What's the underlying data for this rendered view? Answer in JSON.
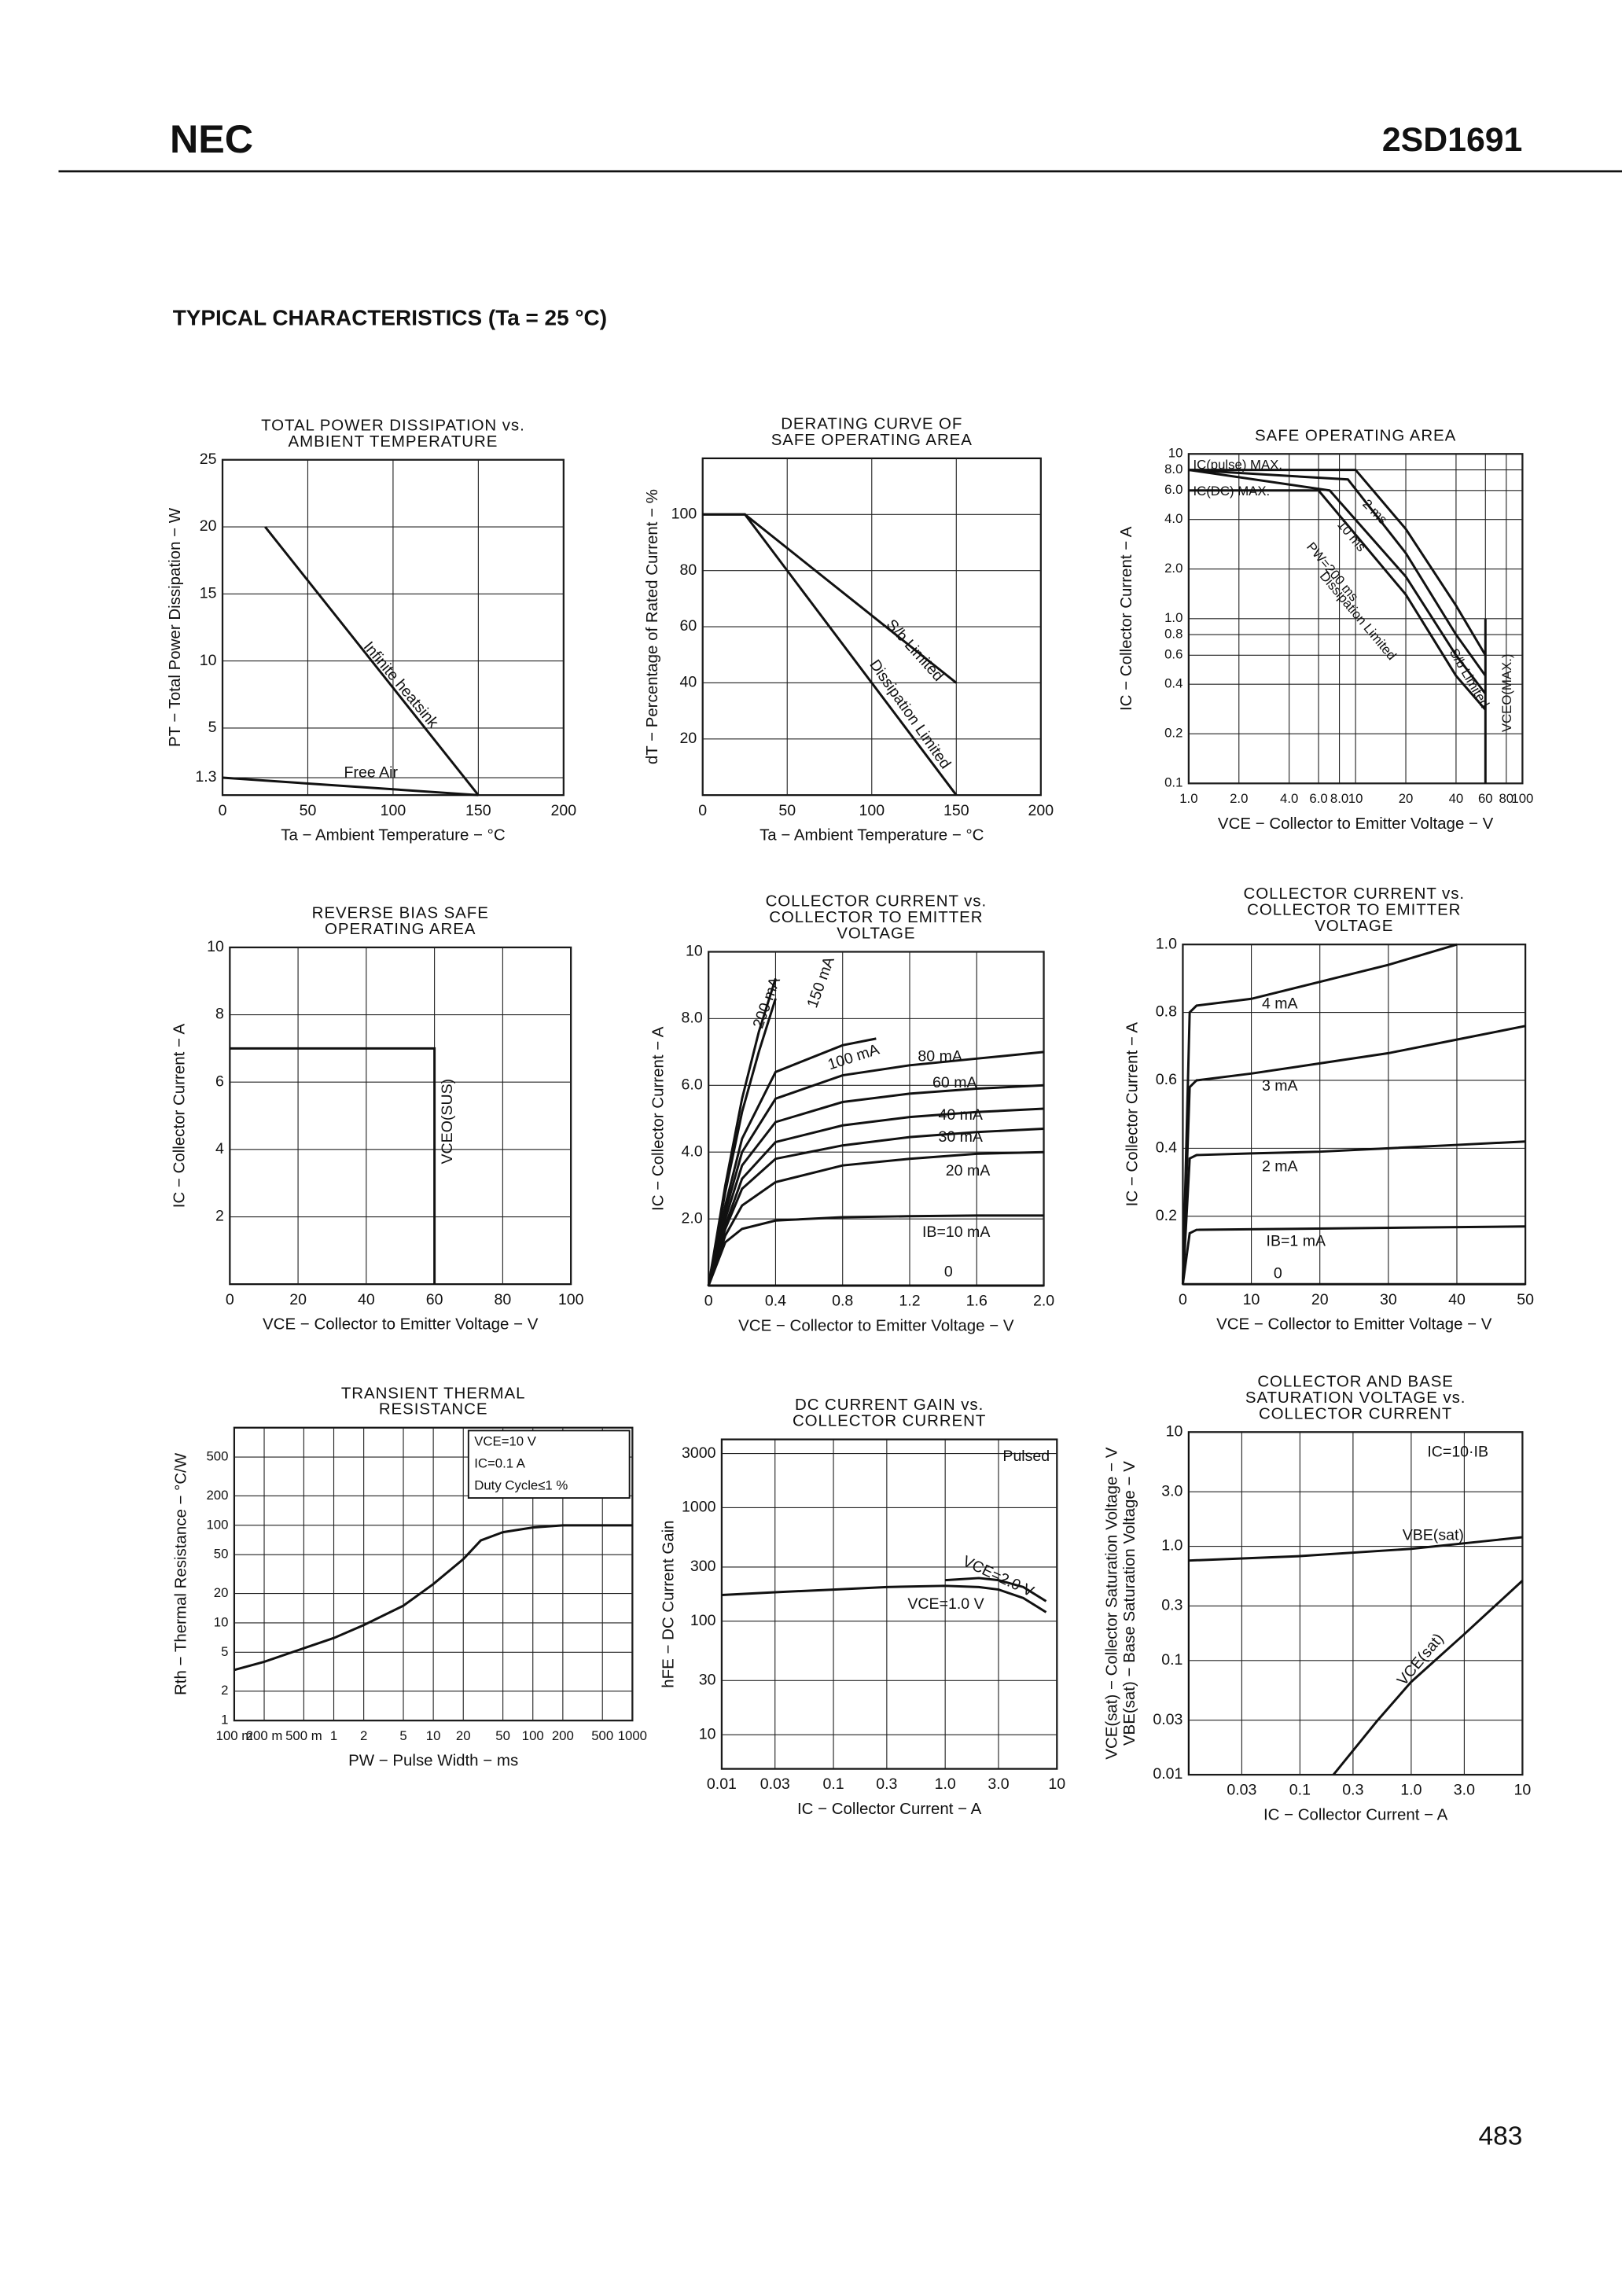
{
  "header": {
    "logo": "NEC",
    "part": "2SD1691"
  },
  "section_title": "TYPICAL CHARACTERISTICS (Ta = 25 °C)",
  "page_number": "483",
  "chart_data": [
    {
      "type": "line",
      "title": [
        "TOTAL POWER DISSIPATION vs.",
        "AMBIENT TEMPERATURE"
      ],
      "xlabel": "Ta − Ambient Temperature − °C",
      "ylabel": "PT − Total Power Dissipation − W",
      "xlim": [
        0,
        200
      ],
      "ylim": [
        0,
        25
      ],
      "xticks": [
        0,
        50,
        100,
        150,
        200
      ],
      "yticks": [
        1.3,
        5,
        10,
        15,
        20,
        25
      ],
      "grid": true,
      "series": [
        {
          "name": "Infinite heatsink",
          "color": "#111",
          "x": [
            25,
            150
          ],
          "values": [
            20,
            0
          ]
        },
        {
          "name": "Free Air",
          "color": "#111",
          "x": [
            0,
            150
          ],
          "values": [
            1.3,
            0
          ]
        }
      ]
    },
    {
      "type": "line",
      "title": [
        "DERATING CURVE OF",
        "SAFE OPERATING AREA"
      ],
      "xlabel": "Ta − Ambient Temperature − °C",
      "ylabel": "dT − Percentage of Rated Current − %",
      "xlim": [
        0,
        200
      ],
      "ylim": [
        0,
        120
      ],
      "xticks": [
        0,
        50,
        100,
        150,
        200
      ],
      "yticks": [
        20,
        40,
        60,
        80,
        100
      ],
      "grid": true,
      "series": [
        {
          "name": "S/b Limited",
          "color": "#111",
          "x": [
            0,
            25,
            150
          ],
          "values": [
            100,
            100,
            40
          ]
        },
        {
          "name": "Dissipation Limited",
          "color": "#111",
          "x": [
            0,
            25,
            150
          ],
          "values": [
            100,
            100,
            0
          ]
        }
      ]
    },
    {
      "type": "line",
      "title": [
        "SAFE OPERATING AREA"
      ],
      "xlabel": "VCE − Collector to Emitter Voltage − V",
      "ylabel": "IC − Collector Current − A",
      "xscale": "log",
      "yscale": "log",
      "xlim": [
        1,
        100
      ],
      "ylim": [
        0.1,
        10
      ],
      "xticks": [
        {
          "value": 1,
          "label": "1.0"
        },
        {
          "value": 2,
          "label": "2.0"
        },
        {
          "value": 4,
          "label": "4.0"
        },
        {
          "value": 6,
          "label": "6.0"
        },
        {
          "value": 8,
          "label": "8.0"
        },
        10,
        20,
        40,
        60,
        80,
        100
      ],
      "yticks": [
        0.1,
        0.2,
        0.4,
        0.6,
        0.8,
        {
          "value": 1,
          "label": "1.0"
        },
        {
          "value": 2,
          "label": "2.0"
        },
        {
          "value": 4,
          "label": "4.0"
        },
        {
          "value": 6,
          "label": "6.0"
        },
        {
          "value": 8,
          "label": "8.0"
        },
        10
      ],
      "grid": true,
      "series": [
        {
          "name": "2 ms",
          "color": "#111",
          "x": [
            1,
            10,
            20,
            40,
            60
          ],
          "values": [
            8,
            8,
            3.5,
            1.2,
            0.6
          ]
        },
        {
          "name": "10 ms",
          "color": "#111",
          "x": [
            1,
            9,
            20,
            40,
            60
          ],
          "values": [
            8,
            7,
            2.5,
            0.8,
            0.45
          ]
        },
        {
          "name": "PW=200 ms",
          "color": "#111",
          "x": [
            1,
            7,
            20,
            40,
            60
          ],
          "values": [
            8,
            6,
            1.8,
            0.6,
            0.35
          ]
        },
        {
          "color": "#111",
          "x": [
            1,
            6,
            20,
            40,
            60
          ],
          "values": [
            6,
            6,
            1.4,
            0.45,
            0.28
          ]
        },
        {
          "color": "#111",
          "x": [
            60,
            60
          ],
          "values": [
            0.1,
            1
          ]
        }
      ],
      "annotations": [
        "IC(pulse) MAX.",
        "IC(DC) MAX.",
        "Dissipation Limited",
        "S/b Limited",
        "VCEO(MAX.)"
      ]
    },
    {
      "type": "line",
      "title": [
        "REVERSE BIAS SAFE",
        "OPERATING AREA"
      ],
      "xlabel": "VCE − Collector to Emitter Voltage − V",
      "ylabel": "IC − Collector Current − A",
      "xlim": [
        0,
        100
      ],
      "ylim": [
        0,
        10
      ],
      "xticks": [
        0,
        20,
        40,
        60,
        80,
        100
      ],
      "yticks": [
        2,
        4,
        6,
        8,
        10
      ],
      "grid": true,
      "series": [
        {
          "color": "#111",
          "x": [
            0,
            60,
            60
          ],
          "values": [
            7,
            7,
            0
          ]
        }
      ],
      "annotations": [
        "VCEO(SUS)"
      ]
    },
    {
      "type": "line",
      "title": [
        "COLLECTOR CURRENT vs.",
        "COLLECTOR TO EMITTER",
        "VOLTAGE"
      ],
      "xlabel": "VCE − Collector to Emitter Voltage − V",
      "ylabel": "IC − Collector Current − A",
      "xlim": [
        0,
        2
      ],
      "ylim": [
        0,
        10
      ],
      "xticks": [
        0,
        0.4,
        0.8,
        1.2,
        1.6,
        {
          "value": 2,
          "label": "2.0"
        }
      ],
      "yticks": [
        {
          "value": 2,
          "label": "2.0"
        },
        {
          "value": 4,
          "label": "4.0"
        },
        {
          "value": 6,
          "label": "6.0"
        },
        {
          "value": 8,
          "label": "8.0"
        },
        10
      ],
      "grid": true,
      "series": [
        {
          "name": "IB=10 mA",
          "color": "#111",
          "x": [
            0,
            0.1,
            0.2,
            0.4,
            0.8,
            1.2,
            1.6,
            2
          ],
          "values": [
            0,
            1.3,
            1.7,
            1.95,
            2.05,
            2.08,
            2.1,
            2.1
          ]
        },
        {
          "name": "20 mA",
          "color": "#111",
          "x": [
            0,
            0.1,
            0.2,
            0.4,
            0.8,
            1.2,
            1.6,
            2
          ],
          "values": [
            0,
            1.5,
            2.4,
            3.1,
            3.6,
            3.8,
            3.95,
            4
          ]
        },
        {
          "name": "30 mA",
          "color": "#111",
          "x": [
            0,
            0.1,
            0.2,
            0.4,
            0.8,
            1.2,
            1.6,
            2
          ],
          "values": [
            0,
            1.7,
            2.9,
            3.8,
            4.2,
            4.45,
            4.6,
            4.7
          ]
        },
        {
          "name": "40 mA",
          "color": "#111",
          "x": [
            0,
            0.1,
            0.2,
            0.4,
            0.8,
            1.2,
            1.6,
            2
          ],
          "values": [
            0,
            1.8,
            3.2,
            4.3,
            4.8,
            5.05,
            5.2,
            5.3
          ]
        },
        {
          "name": "60 mA",
          "color": "#111",
          "x": [
            0,
            0.1,
            0.2,
            0.4,
            0.8,
            1.2,
            1.6,
            2
          ],
          "values": [
            0,
            2,
            3.6,
            4.9,
            5.5,
            5.75,
            5.9,
            6
          ]
        },
        {
          "name": "80 mA",
          "color": "#111",
          "x": [
            0,
            0.1,
            0.2,
            0.4,
            0.8,
            1.2,
            1.6,
            2
          ],
          "values": [
            0,
            2.2,
            4,
            5.6,
            6.3,
            6.6,
            6.8,
            7
          ]
        },
        {
          "name": "100 mA",
          "color": "#111",
          "x": [
            0,
            0.1,
            0.2,
            0.4,
            0.8,
            1
          ],
          "values": [
            0,
            2.4,
            4.4,
            6.4,
            7.2,
            7.4
          ]
        },
        {
          "name": "150 mA",
          "color": "#111",
          "x": [
            0,
            0.1,
            0.2,
            0.3,
            0.4
          ],
          "values": [
            0,
            2.8,
            5.2,
            7,
            8.6
          ]
        },
        {
          "name": "200 mA",
          "color": "#111",
          "x": [
            0,
            0.1,
            0.2,
            0.3,
            0.4
          ],
          "values": [
            0,
            3,
            5.6,
            7.6,
            9.2
          ]
        },
        {
          "name": "0",
          "color": "#111",
          "x": [
            0,
            2
          ],
          "values": [
            0,
            0
          ]
        }
      ]
    },
    {
      "type": "line",
      "title": [
        "COLLECTOR CURRENT vs.",
        "COLLECTOR TO EMITTER",
        "VOLTAGE"
      ],
      "xlabel": "VCE − Collector to Emitter Voltage − V",
      "ylabel": "IC − Collector Current − A",
      "xlim": [
        0,
        50
      ],
      "ylim": [
        0,
        1
      ],
      "xticks": [
        0,
        10,
        20,
        30,
        40,
        50
      ],
      "yticks": [
        0.2,
        0.4,
        0.6,
        0.8,
        {
          "value": 1,
          "label": "1.0"
        }
      ],
      "grid": true,
      "series": [
        {
          "name": "IB=1 mA",
          "color": "#111",
          "x": [
            0,
            1,
            2,
            50
          ],
          "values": [
            0,
            0.15,
            0.16,
            0.17
          ]
        },
        {
          "name": "2 mA",
          "color": "#111",
          "x": [
            0,
            1,
            2,
            10,
            20,
            30,
            40,
            50
          ],
          "values": [
            0,
            0.37,
            0.38,
            0.385,
            0.39,
            0.4,
            0.41,
            0.42
          ]
        },
        {
          "name": "3 mA",
          "color": "#111",
          "x": [
            0,
            1,
            2,
            10,
            20,
            30,
            40,
            50
          ],
          "values": [
            0,
            0.58,
            0.6,
            0.62,
            0.65,
            0.68,
            0.72,
            0.76
          ]
        },
        {
          "name": "4 mA",
          "color": "#111",
          "x": [
            0,
            1,
            2,
            10,
            20,
            30,
            40
          ],
          "values": [
            0,
            0.8,
            0.82,
            0.84,
            0.89,
            0.94,
            1
          ]
        },
        {
          "name": "0",
          "color": "#111",
          "x": [
            0,
            50
          ],
          "values": [
            0,
            0
          ]
        }
      ]
    },
    {
      "type": "line",
      "title": [
        "TRANSIENT THERMAL",
        "RESISTANCE"
      ],
      "xlabel": "PW − Pulse Width − ms",
      "ylabel": "Rth − Thermal Resistance − °C/W",
      "xscale": "log",
      "yscale": "log",
      "xlim": [
        0.1,
        1000
      ],
      "ylim": [
        1,
        1000
      ],
      "xticks": [
        {
          "value": 0.1,
          "label": "100 m"
        },
        {
          "value": 0.2,
          "label": "200 m"
        },
        {
          "value": 0.5,
          "label": "500 m"
        },
        1,
        2,
        5,
        10,
        20,
        50,
        100,
        200,
        500,
        1000
      ],
      "yticks": [
        1,
        2,
        5,
        10,
        20,
        50,
        100,
        200,
        500
      ],
      "grid": true,
      "series": [
        {
          "color": "#111",
          "x": [
            0.1,
            0.2,
            0.5,
            1,
            2,
            5,
            10,
            20,
            30,
            50,
            100,
            200,
            1000
          ],
          "values": [
            3.3,
            4,
            5.5,
            7,
            9.5,
            15,
            25,
            45,
            70,
            85,
            95,
            100,
            100
          ]
        }
      ],
      "annotations": [
        "VCE=10 V",
        "IC=0.1 A",
        "Duty Cycle≤1 %"
      ]
    },
    {
      "type": "line",
      "title": [
        "DC CURRENT GAIN vs.",
        "COLLECTOR CURRENT"
      ],
      "xlabel": "IC − Collector Current − A",
      "ylabel": "hFE − DC Current Gain",
      "xscale": "log",
      "yscale": "log",
      "xlim": [
        0.01,
        10
      ],
      "ylim": [
        5,
        4000
      ],
      "xticks": [
        0.01,
        0.03,
        0.1,
        0.3,
        {
          "value": 1,
          "label": "1.0"
        },
        {
          "value": 3,
          "label": "3.0"
        },
        10
      ],
      "yticks": [
        10,
        30,
        100,
        300,
        1000,
        3000
      ],
      "grid": true,
      "series": [
        {
          "name": "VCE=1.0 V",
          "color": "#111",
          "x": [
            0.01,
            0.03,
            0.1,
            0.3,
            1,
            2,
            3,
            5,
            8
          ],
          "values": [
            170,
            180,
            190,
            200,
            205,
            200,
            190,
            160,
            120
          ]
        },
        {
          "name": "VCE=2.0 V",
          "color": "#111",
          "x": [
            1,
            2,
            3,
            5,
            8
          ],
          "values": [
            230,
            240,
            230,
            200,
            150
          ]
        }
      ],
      "annotations": [
        "Pulsed"
      ]
    },
    {
      "type": "line",
      "title": [
        "COLLECTOR AND BASE",
        "SATURATION VOLTAGE vs.",
        "COLLECTOR CURRENT"
      ],
      "xlabel": "IC − Collector Current − A",
      "ylabel": [
        "VCE(sat) − Collector Saturation Voltage − V",
        "VBE(sat) − Base Saturation Voltage − V"
      ],
      "xscale": "log",
      "yscale": "log",
      "xlim": [
        0.01,
        10
      ],
      "ylim": [
        0.01,
        10
      ],
      "xticks": [
        0.03,
        0.1,
        0.3,
        {
          "value": 1,
          "label": "1.0"
        },
        {
          "value": 3,
          "label": "3.0"
        },
        10
      ],
      "yticks": [
        0.01,
        0.03,
        0.1,
        0.3,
        {
          "value": 1,
          "label": "1.0"
        },
        {
          "value": 3,
          "label": "3.0"
        },
        10
      ],
      "grid": true,
      "series": [
        {
          "name": "VBE(sat)",
          "color": "#111",
          "x": [
            0.01,
            0.1,
            1,
            10
          ],
          "values": [
            0.75,
            0.82,
            0.95,
            1.2
          ]
        },
        {
          "name": "VCE(sat)",
          "color": "#111",
          "x": [
            0.2,
            0.5,
            1,
            3,
            10
          ],
          "values": [
            0.01,
            0.03,
            0.065,
            0.17,
            0.5
          ]
        }
      ],
      "annotations": [
        "IC=10·IB"
      ]
    }
  ]
}
